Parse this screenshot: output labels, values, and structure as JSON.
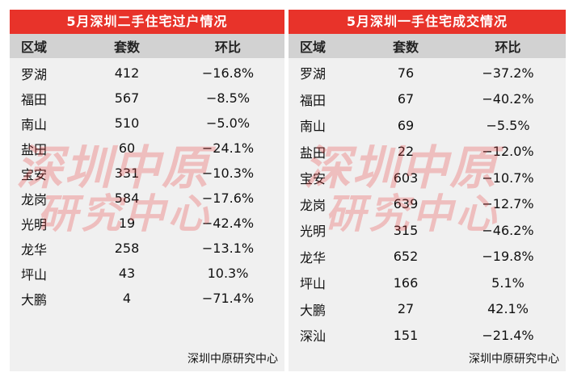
{
  "left_table": {
    "title": "5月深圳二手住宅过户情况",
    "headers": [
      "区域",
      "套数",
      "环比"
    ],
    "rows": [
      [
        "罗湖",
        "412",
        "−16.8%"
      ],
      [
        "福田",
        "567",
        "−8.5%"
      ],
      [
        "南山",
        "510",
        "−5.0%"
      ],
      [
        "盐田",
        "60",
        "−24.1%"
      ],
      [
        "宝安",
        "331",
        "−10.3%"
      ],
      [
        "龙岗",
        "584",
        "−17.6%"
      ],
      [
        "光明",
        "19",
        "−42.4%"
      ],
      [
        "龙华",
        "258",
        "−13.1%"
      ],
      [
        "坪山",
        "43",
        "10.3%"
      ],
      [
        "大鹏",
        "4",
        "−71.4%"
      ]
    ],
    "source": "深圳中原研究中心"
  },
  "right_table": {
    "title": "5月深圳一手住宅成交情况",
    "headers": [
      "区域",
      "套数",
      "环比"
    ],
    "rows": [
      [
        "罗湖",
        "76",
        "−37.2%"
      ],
      [
        "福田",
        "67",
        "−40.2%"
      ],
      [
        "南山",
        "69",
        "−5.5%"
      ],
      [
        "盐田",
        "22",
        "−12.0%"
      ],
      [
        "宝安",
        "603",
        "−10.7%"
      ],
      [
        "龙岗",
        "639",
        "−12.7%"
      ],
      [
        "光明",
        "315",
        "−46.2%"
      ],
      [
        "龙华",
        "652",
        "−19.8%"
      ],
      [
        "坪山",
        "166",
        "5.1%"
      ],
      [
        "大鹏",
        "27",
        "42.1%"
      ],
      [
        "深汕",
        "151",
        "−21.4%"
      ]
    ],
    "source": "深圳中原研究中心"
  },
  "watermark": {
    "line1": "深圳中原",
    "line2": "研究中心",
    "color": "#e83c3c"
  },
  "colors": {
    "title_bar": "#e8332a",
    "header_row": "#d2d2d2",
    "panel_bg": "#f0f0f0"
  }
}
